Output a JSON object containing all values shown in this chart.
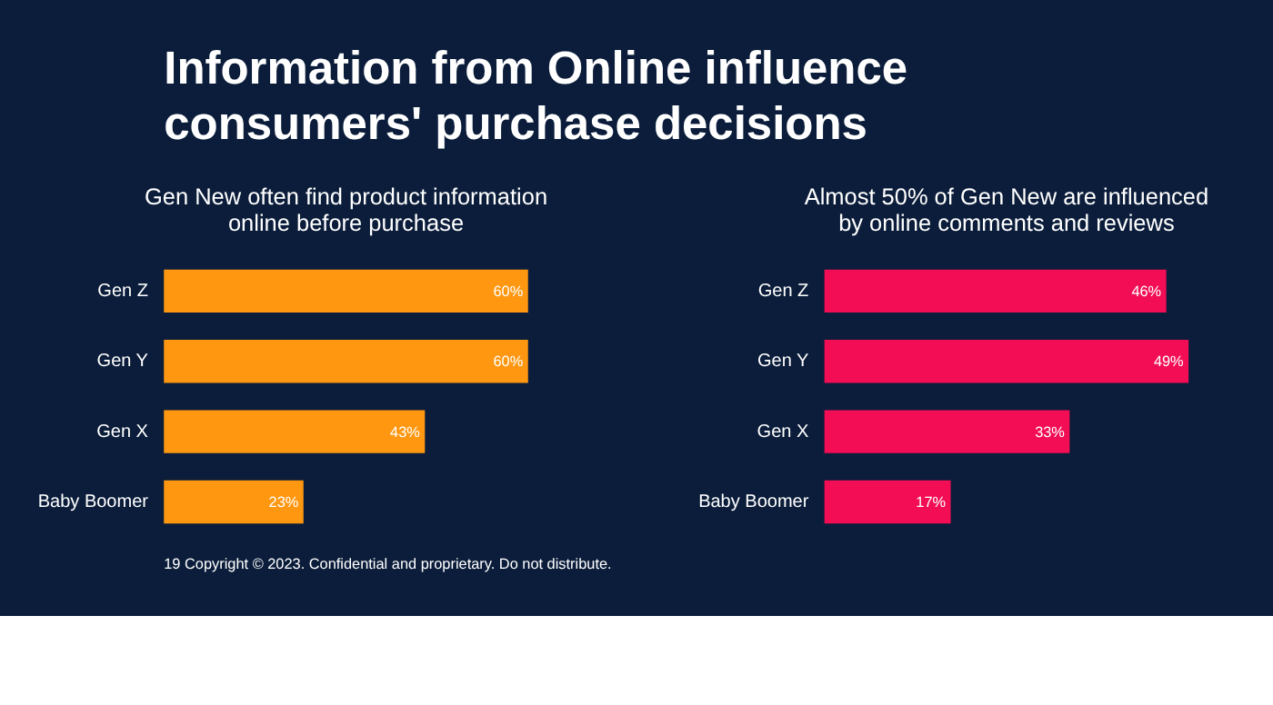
{
  "chart_data": [
    {
      "type": "bar",
      "orientation": "horizontal",
      "title": "Information from Online influence consumers' purchase decisions",
      "subtitle": "Gen New often find product information online before purchase",
      "categories": [
        "Gen Z",
        "Gen Y",
        "Gen X",
        "Baby Boomer"
      ],
      "values": [
        60,
        60,
        43,
        23
      ],
      "value_labels": [
        "60%",
        "60%",
        "43%",
        "23%"
      ],
      "color": "#ff9710"
    },
    {
      "type": "bar",
      "orientation": "horizontal",
      "title": "Almost 50% of Gen New are influenced by online comments and reviews",
      "categories": [
        "Gen Z",
        "Gen Y",
        "Gen X",
        "Baby Boomer"
      ],
      "values": [
        46,
        49,
        33,
        17
      ],
      "value_labels": [
        "46%",
        "49%",
        "33%",
        "17%"
      ],
      "color": "#f20d55",
      "annotations": [
        "19",
        "Copyright © 2023. Confidential and proprietary. Do not distribute."
      ]
    }
  ]
}
